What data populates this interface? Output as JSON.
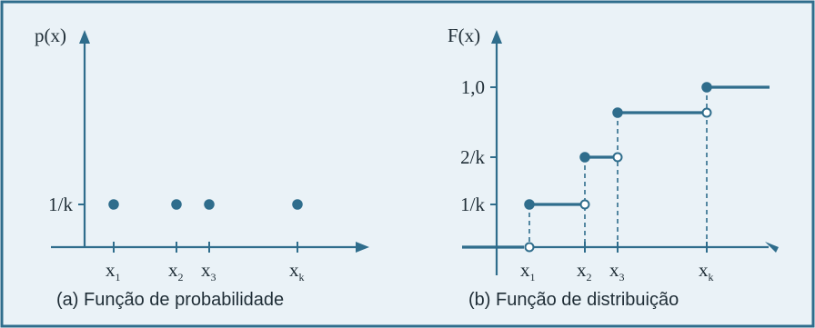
{
  "panel_a": {
    "y_axis_label": "p(x)",
    "y_tick_label": "1/k",
    "x_tick_labels": [
      {
        "base": "x",
        "sub": "1"
      },
      {
        "base": "x",
        "sub": "2"
      },
      {
        "base": "x",
        "sub": "3"
      },
      {
        "base": "x",
        "sub": "k"
      }
    ],
    "caption": "(a) Função de probabilidade"
  },
  "panel_b": {
    "y_axis_label": "F(x)",
    "y_tick_labels": [
      "1/k",
      "2/k",
      "1,0"
    ],
    "x_tick_labels": [
      {
        "base": "x",
        "sub": "1"
      },
      {
        "base": "x",
        "sub": "2"
      },
      {
        "base": "x",
        "sub": "3"
      },
      {
        "base": "x",
        "sub": "k"
      }
    ],
    "caption": "(b) Função de distribuição"
  },
  "colors": {
    "accent": "#2f6d8c",
    "background": "#eaf2f7",
    "text": "#1f2d36"
  }
}
